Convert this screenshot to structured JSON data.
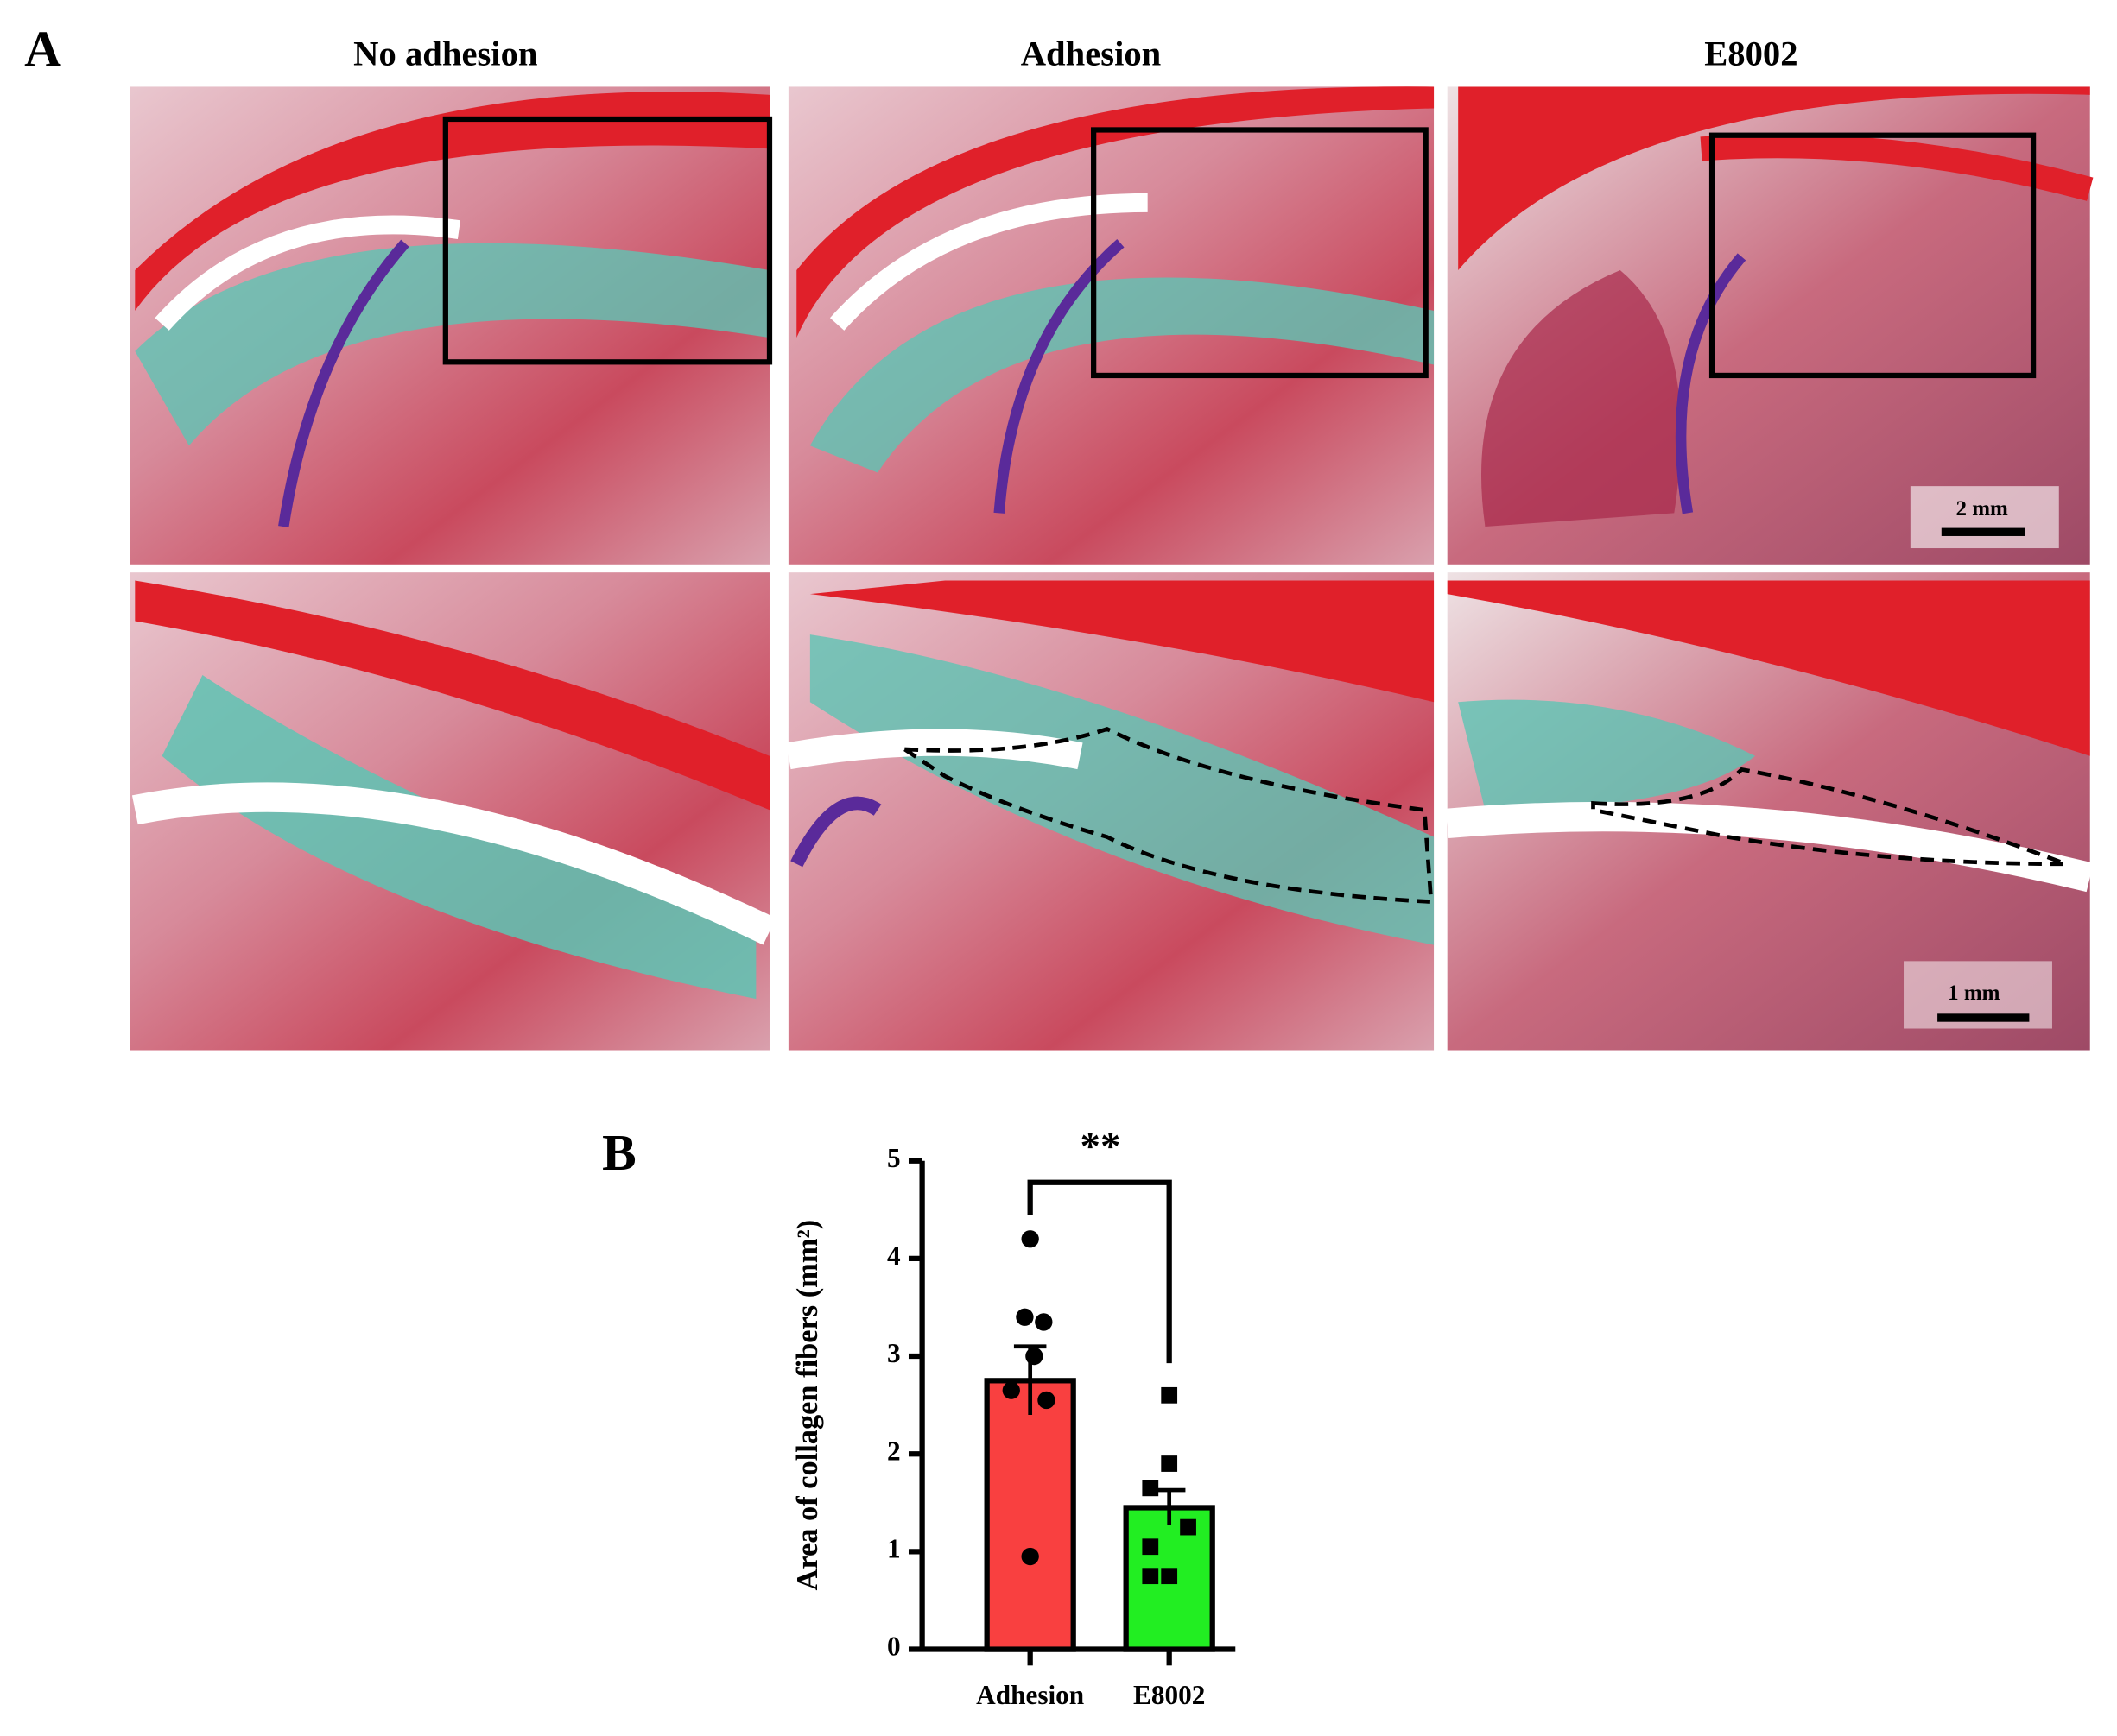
{
  "panel_a": {
    "label": "A",
    "columns": [
      "No adhesion",
      "Adhesion",
      "E8002"
    ],
    "scale_bars": [
      "2 mm",
      "1 mm"
    ]
  },
  "chart_data": {
    "type": "bar",
    "panel_label": "B",
    "ylabel": "Area of collagen fibers (mm²)",
    "categories": [
      "Adhesion",
      "E8002"
    ],
    "values": [
      2.75,
      1.45
    ],
    "errors": [
      0.35,
      0.18
    ],
    "colors": [
      "#f94040",
      "#22ee22"
    ],
    "markers": [
      "circle",
      "square"
    ],
    "points": [
      [
        4.2,
        3.4,
        3.35,
        3.0,
        2.65,
        2.55,
        0.95
      ],
      [
        2.6,
        1.9,
        1.65,
        1.25,
        1.05,
        0.75,
        0.75
      ]
    ],
    "annotation": "**",
    "ylim": [
      0,
      5
    ],
    "yticks": [
      0,
      1,
      2,
      3,
      4,
      5
    ]
  }
}
